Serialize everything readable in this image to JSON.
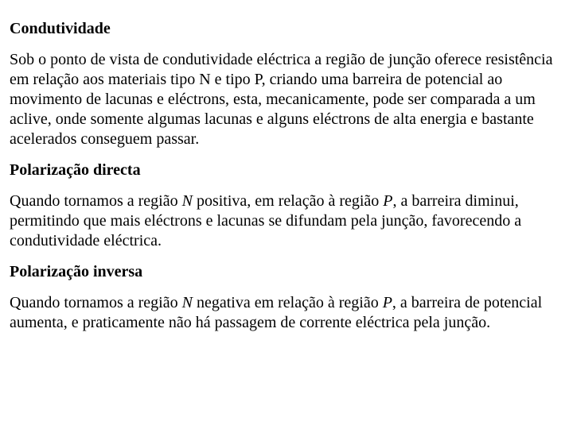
{
  "section1": {
    "heading": "Condutividade",
    "body": "Sob o ponto de vista de condutividade eléctrica a região de junção oferece resistência em relação aos materiais tipo N e tipo P, criando uma barreira de potencial ao movimento de lacunas e eléctrons, esta, mecanicamente, pode ser comparada a um aclive, onde somente algumas lacunas e alguns eléctrons de alta energia e bastante acelerados conseguem passar."
  },
  "section2": {
    "heading": "Polarização directa",
    "lead1": "Quando tornamos a região ",
    "n": "N",
    "mid1": " positiva, em relação à região ",
    "p": "P",
    "tail1": ", a barreira diminui, permitindo que mais eléctrons e lacunas se difundam pela junção, favorecendo a condutividade eléctrica."
  },
  "section3": {
    "heading": "Polarização inversa",
    "lead2": "Quando tornamos a região ",
    "n": "N",
    "mid2": " negativa em relação à região ",
    "p": "P",
    "tail2": ", a barreira de potencial aumenta, e praticamente não há passagem de corrente eléctrica pela junção."
  },
  "style": {
    "font_family": "Times New Roman",
    "font_size_pt": 15,
    "text_color": "#000000",
    "background_color": "#ffffff"
  }
}
